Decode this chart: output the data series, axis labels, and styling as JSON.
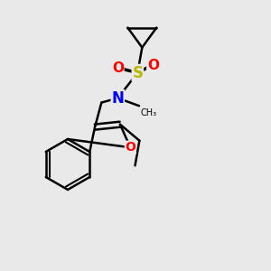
{
  "bg_color": "#e9e9e9",
  "bond_color": "#000000",
  "bond_width": 1.8,
  "atom_colors": {
    "N": "#0000ff",
    "O": "#ff0000",
    "S": "#b8b800",
    "C": "#000000"
  },
  "font_size": 11,
  "fig_size": [
    3.0,
    3.0
  ],
  "dpi": 100
}
